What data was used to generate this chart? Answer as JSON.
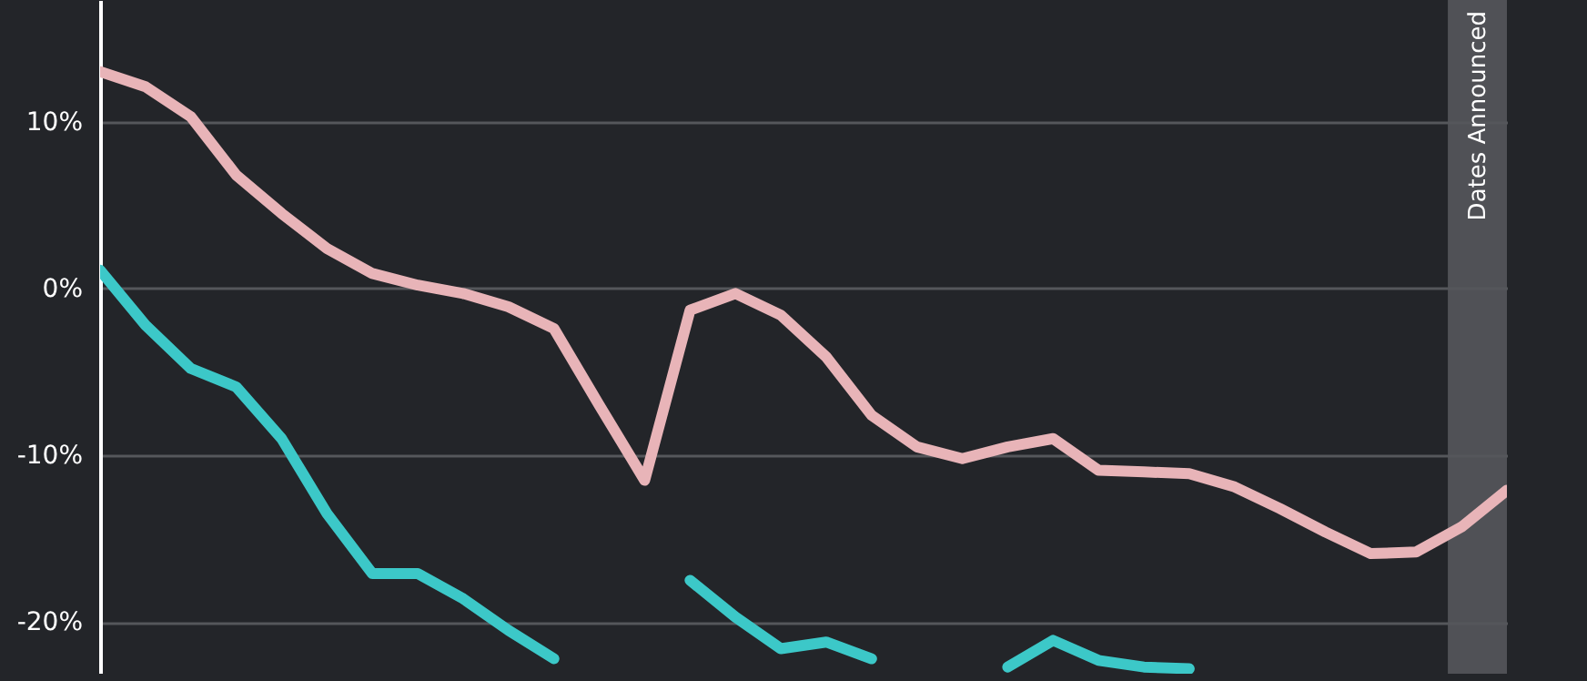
{
  "chart_data": {
    "type": "line",
    "categories": [
      null,
      null,
      null,
      null,
      null,
      null,
      null,
      null,
      null,
      null,
      null,
      null,
      null,
      null,
      null,
      null,
      null,
      null,
      null,
      null,
      null,
      null,
      null,
      null,
      null,
      null,
      null,
      null,
      null,
      null,
      null,
      null
    ],
    "series": [
      {
        "color": "#e8b4b8",
        "values": [
          13.0,
          12.1,
          10.3,
          6.8,
          4.5,
          2.4,
          0.9,
          0.2,
          -0.3,
          -1.1,
          -2.4,
          -7.0,
          -11.5,
          -1.3,
          -0.3,
          -1.6,
          -4.1,
          -7.6,
          -9.5,
          -10.2,
          -9.5,
          -9.0,
          -10.9,
          -11.0,
          -11.1,
          -11.9,
          -13.2,
          -14.6,
          -15.9,
          -15.8,
          -14.3,
          -12.1
        ]
      },
      {
        "color": "#3cc8c8",
        "values": [
          1.1,
          -2.2,
          -4.8,
          -5.9,
          -9.0,
          -13.5,
          -17.1,
          -17.1,
          -18.6,
          -20.5,
          -22.2,
          null,
          null,
          -17.5,
          -19.7,
          -21.6,
          -21.2,
          -22.2,
          null,
          null,
          -22.7,
          -21.1,
          -22.3,
          -22.7,
          -22.8,
          null,
          null,
          null,
          null,
          null,
          null,
          null
        ]
      }
    ],
    "ylim": [
      -23.1,
      17.3
    ],
    "yticks": [
      {
        "value": 10,
        "label": "10%"
      },
      {
        "value": 0,
        "label": "0%"
      },
      {
        "value": -10,
        "label": "-10%"
      },
      {
        "value": -20,
        "label": "-20%"
      }
    ],
    "grid": "y",
    "tick_labels": "y",
    "line_style": "solid",
    "annotations": [
      "Dates Announced"
    ]
  }
}
